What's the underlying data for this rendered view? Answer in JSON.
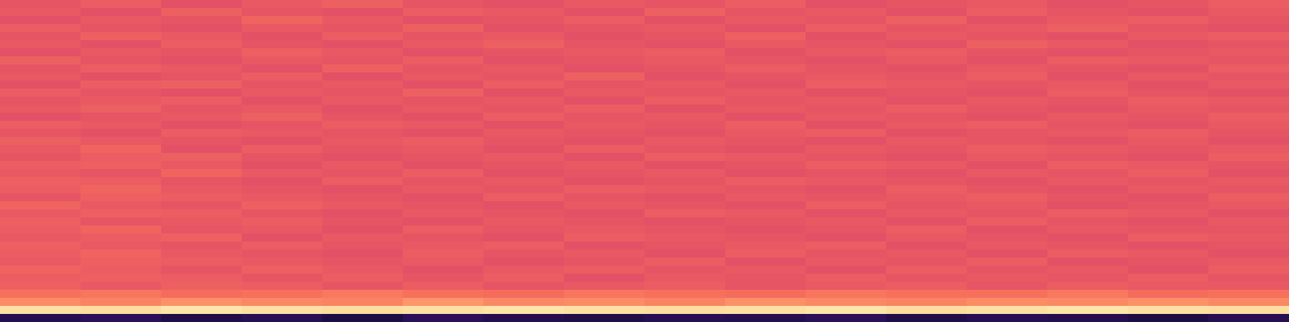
{
  "chart_data": {
    "type": "heatmap",
    "tick_labels": false,
    "color_range": [
      0,
      1
    ],
    "cells": [
      [
        0.63,
        0.65,
        0.62,
        0.64,
        0.66,
        0.63,
        0.62,
        0.64,
        0.63,
        0.65,
        0.62,
        0.63,
        0.64,
        0.62,
        0.63,
        0.65
      ],
      [
        0.64,
        0.62,
        0.66,
        0.63,
        0.62,
        0.65,
        0.64,
        0.62,
        0.66,
        0.63,
        0.64,
        0.62,
        0.65,
        0.63,
        0.62,
        0.64
      ],
      [
        0.62,
        0.64,
        0.63,
        0.67,
        0.64,
        0.62,
        0.63,
        0.65,
        0.62,
        0.64,
        0.63,
        0.66,
        0.62,
        0.64,
        0.65,
        0.63
      ],
      [
        0.65,
        0.63,
        0.62,
        0.64,
        0.63,
        0.66,
        0.62,
        0.63,
        0.64,
        0.62,
        0.65,
        0.63,
        0.64,
        0.66,
        0.63,
        0.62
      ],
      [
        0.63,
        0.66,
        0.64,
        0.62,
        0.65,
        0.63,
        0.64,
        0.62,
        0.63,
        0.66,
        0.62,
        0.64,
        0.63,
        0.62,
        0.64,
        0.65
      ],
      [
        0.64,
        0.62,
        0.65,
        0.63,
        0.62,
        0.64,
        0.66,
        0.63,
        0.62,
        0.64,
        0.63,
        0.62,
        0.66,
        0.64,
        0.62,
        0.63
      ],
      [
        0.62,
        0.64,
        0.63,
        0.66,
        0.64,
        0.62,
        0.63,
        0.64,
        0.65,
        0.62,
        0.64,
        0.65,
        0.63,
        0.62,
        0.63,
        0.64
      ],
      [
        0.66,
        0.63,
        0.62,
        0.64,
        0.63,
        0.65,
        0.62,
        0.63,
        0.64,
        0.63,
        0.62,
        0.64,
        0.62,
        0.65,
        0.64,
        0.63
      ],
      [
        0.63,
        0.65,
        0.64,
        0.62,
        0.66,
        0.63,
        0.64,
        0.62,
        0.63,
        0.65,
        0.63,
        0.62,
        0.64,
        0.63,
        0.62,
        0.65
      ],
      [
        0.64,
        0.62,
        0.63,
        0.65,
        0.62,
        0.64,
        0.63,
        0.66,
        0.62,
        0.63,
        0.64,
        0.63,
        0.65,
        0.62,
        0.64,
        0.63
      ],
      [
        0.62,
        0.65,
        0.66,
        0.63,
        0.64,
        0.62,
        0.65,
        0.63,
        0.64,
        0.62,
        0.65,
        0.64,
        0.63,
        0.64,
        0.62,
        0.64
      ],
      [
        0.65,
        0.63,
        0.62,
        0.64,
        0.63,
        0.66,
        0.62,
        0.64,
        0.63,
        0.64,
        0.62,
        0.63,
        0.62,
        0.65,
        0.63,
        0.62
      ],
      [
        0.63,
        0.64,
        0.65,
        0.62,
        0.64,
        0.63,
        0.64,
        0.62,
        0.65,
        0.63,
        0.64,
        0.62,
        0.64,
        0.63,
        0.65,
        0.64
      ],
      [
        0.64,
        0.66,
        0.63,
        0.64,
        0.62,
        0.64,
        0.63,
        0.65,
        0.62,
        0.64,
        0.63,
        0.65,
        0.63,
        0.62,
        0.64,
        0.63
      ],
      [
        0.62,
        0.63,
        0.64,
        0.66,
        0.63,
        0.62,
        0.65,
        0.63,
        0.64,
        0.62,
        0.64,
        0.63,
        0.62,
        0.64,
        0.63,
        0.65
      ],
      [
        0.65,
        0.64,
        0.62,
        0.63,
        0.65,
        0.64,
        0.62,
        0.64,
        0.63,
        0.65,
        0.62,
        0.64,
        0.65,
        0.63,
        0.62,
        0.64
      ],
      [
        0.63,
        0.62,
        0.65,
        0.64,
        0.63,
        0.62,
        0.64,
        0.63,
        0.62,
        0.64,
        0.65,
        0.62,
        0.63,
        0.64,
        0.65,
        0.63
      ],
      [
        0.66,
        0.64,
        0.63,
        0.62,
        0.64,
        0.65,
        0.63,
        0.62,
        0.64,
        0.63,
        0.62,
        0.64,
        0.63,
        0.62,
        0.64,
        0.62
      ],
      [
        0.64,
        0.67,
        0.62,
        0.65,
        0.63,
        0.64,
        0.62,
        0.65,
        0.63,
        0.62,
        0.64,
        0.63,
        0.65,
        0.64,
        0.63,
        0.64
      ],
      [
        0.63,
        0.65,
        0.66,
        0.63,
        0.62,
        0.63,
        0.64,
        0.62,
        0.65,
        0.64,
        0.63,
        0.62,
        0.64,
        0.63,
        0.62,
        0.65
      ],
      [
        0.65,
        0.66,
        0.64,
        0.62,
        0.64,
        0.62,
        0.63,
        0.64,
        0.62,
        0.63,
        0.65,
        0.64,
        0.62,
        0.65,
        0.64,
        0.63
      ],
      [
        0.64,
        0.63,
        0.67,
        0.64,
        0.63,
        0.65,
        0.62,
        0.63,
        0.64,
        0.62,
        0.63,
        0.62,
        0.64,
        0.63,
        0.65,
        0.62
      ],
      [
        0.66,
        0.65,
        0.63,
        0.62,
        0.65,
        0.63,
        0.64,
        0.62,
        0.63,
        0.65,
        0.64,
        0.63,
        0.62,
        0.64,
        0.63,
        0.64
      ],
      [
        0.65,
        0.67,
        0.64,
        0.63,
        0.62,
        0.64,
        0.63,
        0.65,
        0.64,
        0.63,
        0.62,
        0.65,
        0.63,
        0.62,
        0.64,
        0.63
      ],
      [
        0.63,
        0.66,
        0.65,
        0.64,
        0.63,
        0.62,
        0.65,
        0.63,
        0.62,
        0.64,
        0.63,
        0.64,
        0.65,
        0.63,
        0.62,
        0.65
      ],
      [
        0.67,
        0.64,
        0.63,
        0.66,
        0.64,
        0.63,
        0.62,
        0.64,
        0.63,
        0.62,
        0.65,
        0.63,
        0.64,
        0.62,
        0.63,
        0.64
      ],
      [
        0.64,
        0.66,
        0.65,
        0.63,
        0.62,
        0.64,
        0.63,
        0.62,
        0.65,
        0.64,
        0.62,
        0.64,
        0.63,
        0.65,
        0.64,
        0.62
      ],
      [
        0.66,
        0.63,
        0.64,
        0.65,
        0.63,
        0.62,
        0.64,
        0.63,
        0.62,
        0.63,
        0.64,
        0.62,
        0.65,
        0.63,
        0.62,
        0.64
      ],
      [
        0.65,
        0.67,
        0.63,
        0.64,
        0.62,
        0.65,
        0.63,
        0.64,
        0.63,
        0.62,
        0.63,
        0.65,
        0.62,
        0.64,
        0.63,
        0.63
      ],
      [
        0.64,
        0.65,
        0.66,
        0.62,
        0.64,
        0.63,
        0.62,
        0.65,
        0.64,
        0.63,
        0.62,
        0.64,
        0.63,
        0.62,
        0.65,
        0.64
      ],
      [
        0.66,
        0.64,
        0.63,
        0.65,
        0.63,
        0.64,
        0.65,
        0.62,
        0.63,
        0.64,
        0.65,
        0.62,
        0.64,
        0.63,
        0.62,
        0.63
      ],
      [
        0.65,
        0.67,
        0.64,
        0.63,
        0.62,
        0.65,
        0.63,
        0.64,
        0.62,
        0.65,
        0.63,
        0.64,
        0.62,
        0.65,
        0.64,
        0.62
      ],
      [
        0.64,
        0.66,
        0.65,
        0.64,
        0.63,
        0.64,
        0.62,
        0.63,
        0.65,
        0.62,
        0.64,
        0.63,
        0.65,
        0.62,
        0.63,
        0.64
      ],
      [
        0.67,
        0.65,
        0.63,
        0.66,
        0.64,
        0.62,
        0.64,
        0.65,
        0.63,
        0.64,
        0.62,
        0.65,
        0.63,
        0.64,
        0.62,
        0.65
      ],
      [
        0.65,
        0.66,
        0.65,
        0.63,
        0.65,
        0.63,
        0.65,
        0.62,
        0.64,
        0.63,
        0.65,
        0.63,
        0.64,
        0.63,
        0.65,
        0.63
      ],
      [
        0.66,
        0.64,
        0.66,
        0.65,
        0.63,
        0.65,
        0.63,
        0.64,
        0.65,
        0.63,
        0.64,
        0.65,
        0.63,
        0.65,
        0.64,
        0.64
      ],
      [
        0.7,
        0.71,
        0.69,
        0.7,
        0.72,
        0.7,
        0.69,
        0.71,
        0.7,
        0.69,
        0.71,
        0.7,
        0.7,
        0.72,
        0.69,
        0.7
      ],
      [
        0.76,
        0.74,
        0.77,
        0.75,
        0.74,
        0.78,
        0.75,
        0.76,
        0.74,
        0.77,
        0.75,
        0.74,
        0.76,
        0.75,
        0.77,
        0.75
      ],
      [
        0.94,
        0.93,
        0.95,
        0.94,
        0.93,
        0.94,
        0.95,
        0.94,
        0.93,
        0.94,
        0.95,
        0.93,
        0.94,
        0.95,
        0.94,
        0.93
      ],
      [
        0.14,
        0.16,
        0.13,
        0.15,
        0.12,
        0.16,
        0.14,
        0.13,
        0.15,
        0.14,
        0.16,
        0.13,
        0.15,
        0.14,
        0.12,
        0.15
      ]
    ]
  }
}
